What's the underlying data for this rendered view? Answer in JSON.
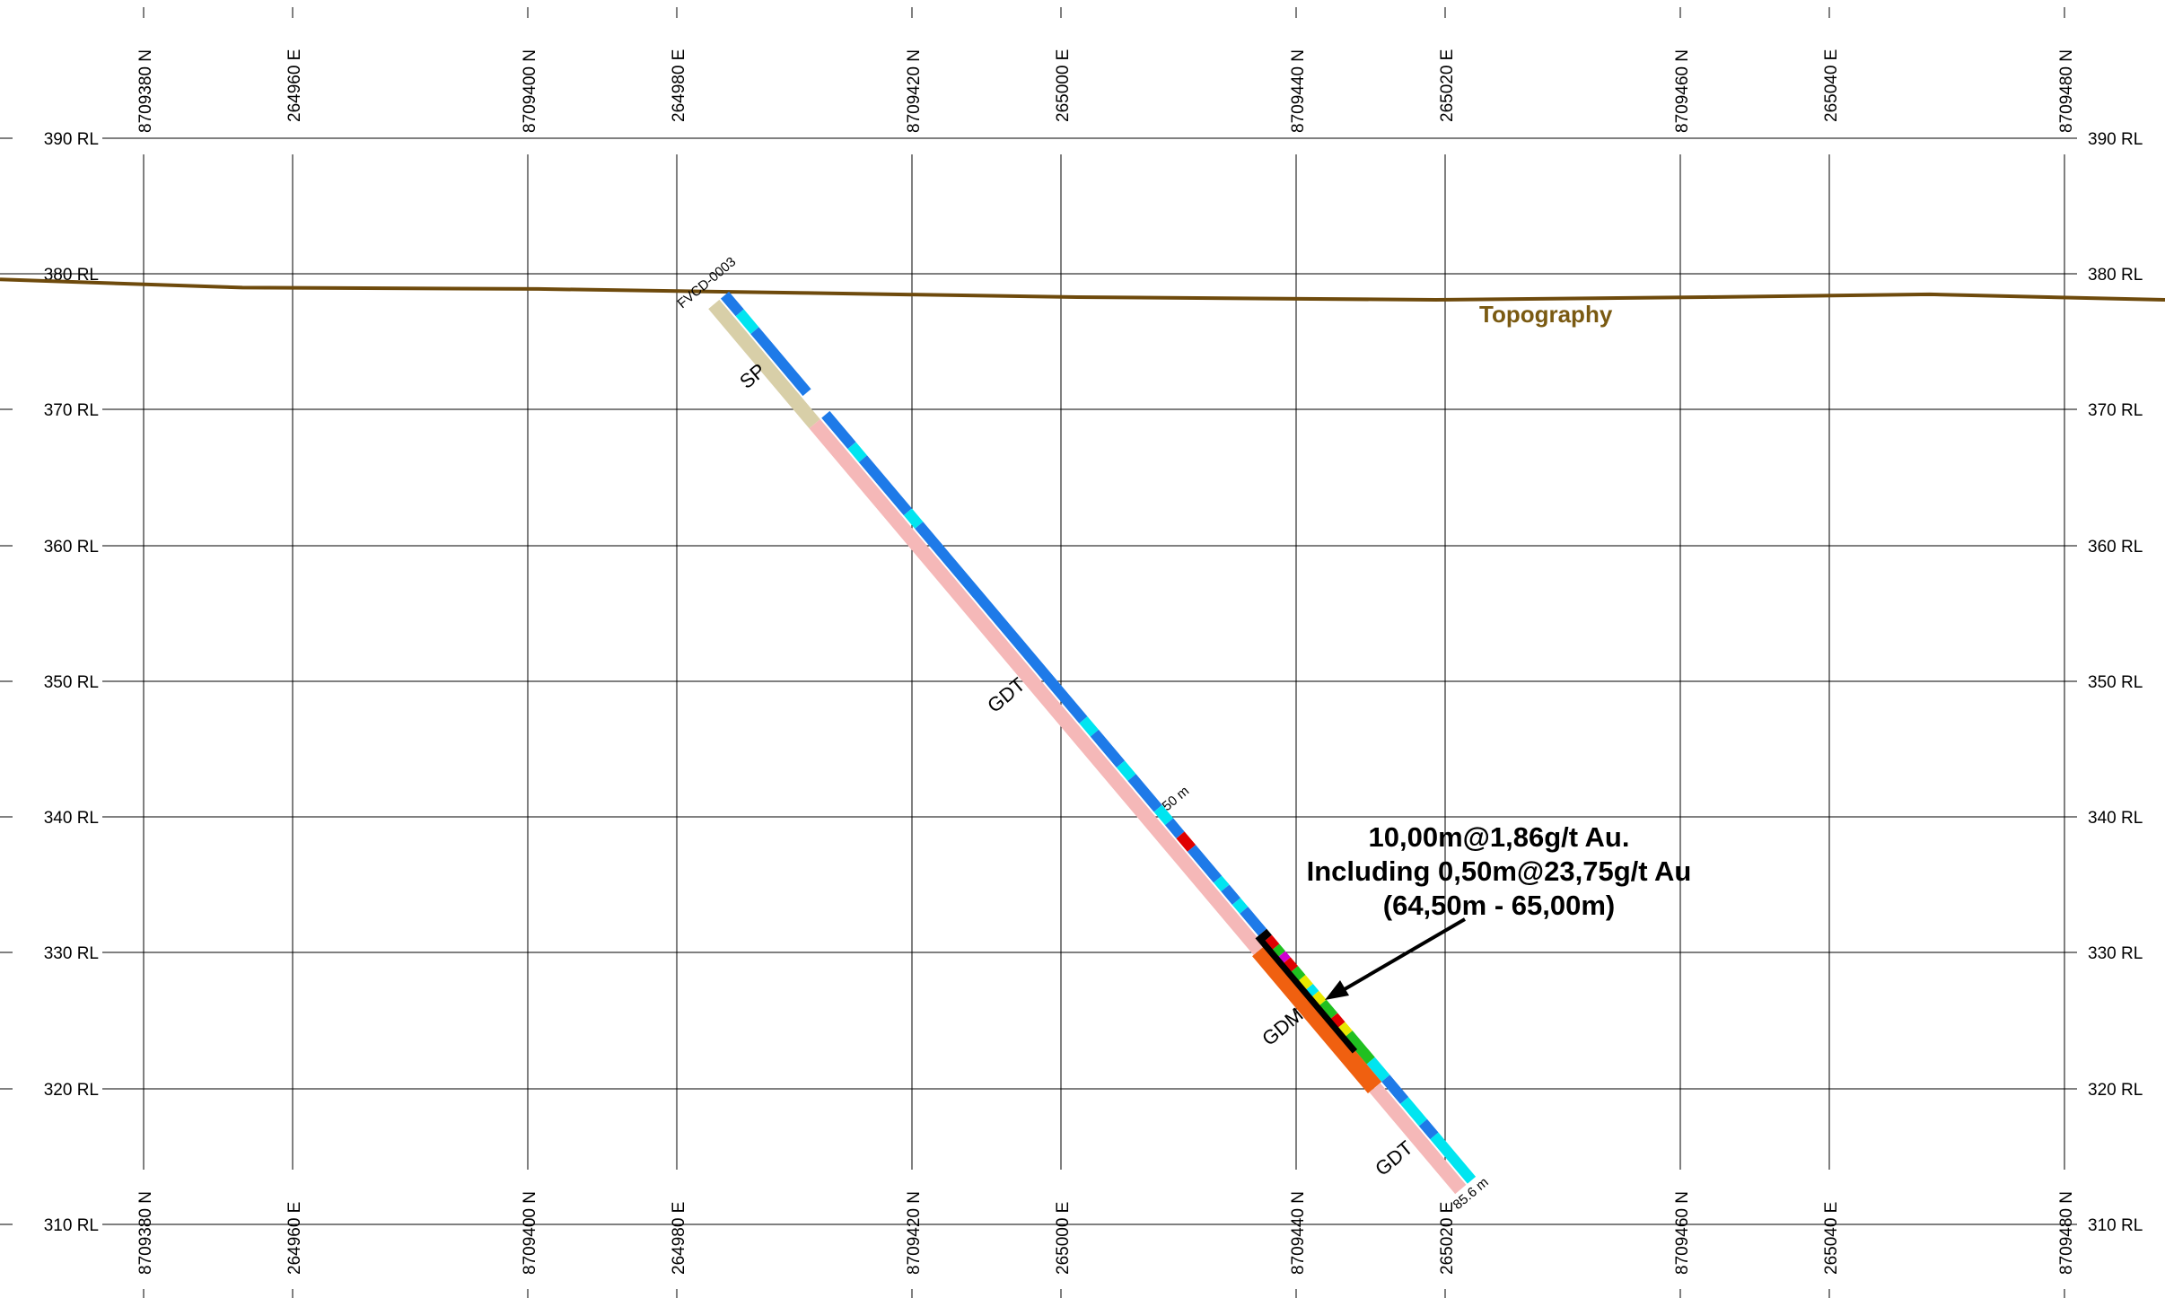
{
  "section": {
    "rl_labels": [
      "390 RL",
      "380 RL",
      "370 RL",
      "360 RL",
      "350 RL",
      "340 RL",
      "330 RL",
      "320 RL",
      "310 RL"
    ],
    "coord_labels": [
      "8709380 N",
      "264960 E",
      "8709400 N",
      "264980 E",
      "8709420 N",
      "265000 E",
      "8709440 N",
      "265020 E",
      "8709460 N",
      "265040 E",
      "8709480 N"
    ],
    "topography": {
      "label": "Topography",
      "color": "#6e4a0c",
      "profile": [
        [
          0,
          379.6
        ],
        [
          270,
          379.0
        ],
        [
          600,
          378.9
        ],
        [
          900,
          378.6
        ],
        [
          1200,
          378.3
        ],
        [
          1600,
          378.1
        ],
        [
          1900,
          378.3
        ],
        [
          2150,
          378.5
        ],
        [
          2412,
          378.1
        ]
      ]
    },
    "drillhole": {
      "collar_label": "FVCD-0003",
      "depth_marker": "50 m",
      "end_depth": "85.6 m",
      "colors": {
        "blue": "#1e7ae8",
        "cyan": "#00e5f0",
        "red": "#e00000",
        "green": "#20c020",
        "yellow": "#e8e800",
        "magenta": "#d000d0",
        "black": "#000000"
      },
      "assay_segments": [
        [
          "blue",
          0.0,
          0.02
        ],
        [
          "cyan",
          0.02,
          0.04
        ],
        [
          "blue",
          0.04,
          0.11
        ],
        [
          "blue",
          0.135,
          0.17
        ],
        [
          "cyan",
          0.17,
          0.185
        ],
        [
          "blue",
          0.185,
          0.245
        ],
        [
          "cyan",
          0.245,
          0.26
        ],
        [
          "blue",
          0.26,
          0.48
        ],
        [
          "cyan",
          0.48,
          0.495
        ],
        [
          "blue",
          0.495,
          0.53
        ],
        [
          "cyan",
          0.53,
          0.545
        ],
        [
          "blue",
          0.545,
          0.58
        ],
        [
          "cyan",
          0.58,
          0.595
        ],
        [
          "blue",
          0.595,
          0.61
        ],
        [
          "red",
          0.61,
          0.625
        ],
        [
          "blue",
          0.625,
          0.66
        ],
        [
          "cyan",
          0.66,
          0.67
        ],
        [
          "blue",
          0.67,
          0.685
        ],
        [
          "cyan",
          0.685,
          0.695
        ],
        [
          "blue",
          0.695,
          0.72
        ],
        [
          "black",
          0.72,
          0.727
        ],
        [
          "red",
          0.727,
          0.737
        ],
        [
          "green",
          0.737,
          0.745
        ],
        [
          "magenta",
          0.745,
          0.752
        ],
        [
          "red",
          0.752,
          0.762
        ],
        [
          "green",
          0.762,
          0.772
        ],
        [
          "yellow",
          0.772,
          0.782
        ],
        [
          "cyan",
          0.782,
          0.79
        ],
        [
          "yellow",
          0.79,
          0.8
        ],
        [
          "green",
          0.8,
          0.815
        ],
        [
          "red",
          0.815,
          0.825
        ],
        [
          "yellow",
          0.825,
          0.835
        ],
        [
          "green",
          0.835,
          0.865
        ],
        [
          "cyan",
          0.865,
          0.885
        ],
        [
          "blue",
          0.885,
          0.91
        ],
        [
          "cyan",
          0.91,
          0.935
        ],
        [
          "blue",
          0.935,
          0.95
        ],
        [
          "cyan",
          0.95,
          1.0
        ]
      ],
      "lithology": [
        {
          "code": "SP",
          "color": "#d8cfa8",
          "from": 0.0,
          "to": 0.135
        },
        {
          "code": "GDT",
          "color": "#f5b8b8",
          "from": 0.135,
          "to": 0.73
        },
        {
          "code": "GDM",
          "color": "#f06010",
          "from": 0.73,
          "to": 0.885
        },
        {
          "code": "GDT",
          "color": "#f5b8b8",
          "from": 0.885,
          "to": 1.0
        }
      ],
      "intercept": {
        "line1": "10,00m@1,86g/t Au.",
        "line2": "Including 0,50m@23,75g/t Au",
        "line3": "(64,50m - 65,00m)"
      }
    }
  }
}
